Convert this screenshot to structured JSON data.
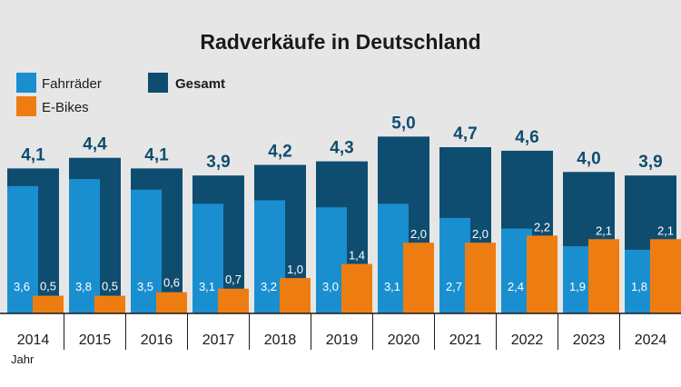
{
  "chart_data": {
    "type": "bar",
    "title": "Radverkäufe in Deutschland",
    "xlabel": "Jahr",
    "ylabel": "",
    "ylim": [
      0,
      5.6
    ],
    "grid": false,
    "legend_position": "top-left",
    "categories": [
      "2014",
      "2015",
      "2016",
      "2017",
      "2018",
      "2019",
      "2020",
      "2021",
      "2022",
      "2023",
      "2024"
    ],
    "series": [
      {
        "name": "Fahrräder",
        "color": "#1a8fd0",
        "values": [
          3.6,
          3.8,
          3.5,
          3.1,
          3.2,
          3.0,
          3.1,
          2.7,
          2.4,
          1.9,
          1.8
        ]
      },
      {
        "name": "E-Bikes",
        "color": "#ee7d11",
        "values": [
          0.5,
          0.5,
          0.6,
          0.7,
          1.0,
          1.4,
          2.0,
          2.0,
          2.2,
          2.1,
          2.1
        ]
      },
      {
        "name": "Gesamt",
        "color": "#0f4d70",
        "values": [
          4.1,
          4.4,
          4.1,
          3.9,
          4.2,
          4.3,
          5.0,
          4.7,
          4.6,
          4.0,
          3.9
        ]
      }
    ],
    "labels": {
      "Fahrräder": [
        "3,6",
        "3,8",
        "3,5",
        "3,1",
        "3,2",
        "3,0",
        "3,1",
        "2,7",
        "2,4",
        "1,9",
        "1,8"
      ],
      "E-Bikes": [
        "0,5",
        "0,5",
        "0,6",
        "0,7",
        "1,0",
        "1,4",
        "2,0",
        "2,0",
        "2,2",
        "2,1",
        "2,1"
      ],
      "Gesamt": [
        "4,1",
        "4,4",
        "4,1",
        "3,9",
        "4,2",
        "4,3",
        "5,0",
        "4,7",
        "4,6",
        "4,0",
        "3,9"
      ]
    },
    "colors": {
      "background": "#e6e6e6",
      "title": "#1a1a1a",
      "gesamt_label": "#0f4d70"
    }
  }
}
